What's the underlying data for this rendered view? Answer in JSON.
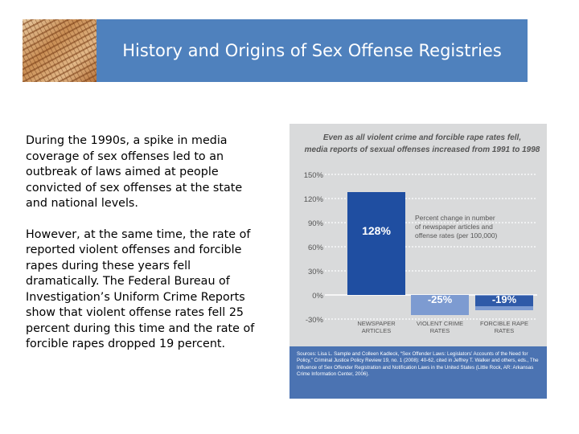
{
  "slide": {
    "title": "History and Origins of Sex Offense Registries"
  },
  "body": {
    "paragraph1": "During the 1990s, a spike in media coverage of sex offenses led to an outbreak of laws aimed at people convicted of sex offenses at the state and national levels.",
    "paragraph2": "However, at the same time, the rate of reported violent offenses and forcible rapes during these years fell dramatically. The Federal Bureau of Investigation’s Uniform Crime Reports show that violent offense rates fell 25 percent during this time and the rate of forcible rapes dropped 19 percent."
  },
  "chart_data": {
    "type": "bar",
    "title_line1": "Even as all violent crime and forcible rape rates fell,",
    "title_line2": "media reports of sexual offenses increased from 1991 to 1998",
    "categories": [
      "NEWSPAPER ARTICLES",
      "VIOLENT CRIME RATES",
      "FORCIBLE RAPE RATES"
    ],
    "category_line1": [
      "NEWSPAPER",
      "VIOLENT CRIME",
      "FORCIBLE RAPE"
    ],
    "category_line2": [
      "ARTICLES",
      "RATES",
      "RATES"
    ],
    "values": [
      128,
      -25,
      -19
    ],
    "data_labels": [
      "128%",
      "-25%",
      "-19%"
    ],
    "ylim": [
      -30,
      150
    ],
    "yticks": [
      150,
      120,
      90,
      60,
      30,
      0,
      -30
    ],
    "ytick_labels": [
      "150%",
      "120%",
      "90%",
      "60%",
      "30%",
      "0%",
      "-30%"
    ],
    "annotation": [
      "Percent change in number",
      "of newspaper articles and",
      "offense rates (per 100,000)"
    ],
    "sources_label": "Sources:",
    "sources_text": "Lisa L. Sample and Colleen Kadleck, “Sex Offender Laws: Legislators’ Accounts of the Need for Policy,” Criminal Justice Policy Review 19, no. 1 (2008): 40-62, cited in Jeffrey T. Walker and others, eds., The Influence of Sex Offender Registration and Notification Laws in the United States (Little Rock, AR: Arkansas Crime Information Center, 2006).",
    "colors": {
      "bar_positive": "#1f4ea1",
      "bar_negative": "#7d9bd1",
      "bar_dark_negative": "#2f5aa8",
      "panel": "#d9dadb",
      "text": "#555555"
    }
  }
}
